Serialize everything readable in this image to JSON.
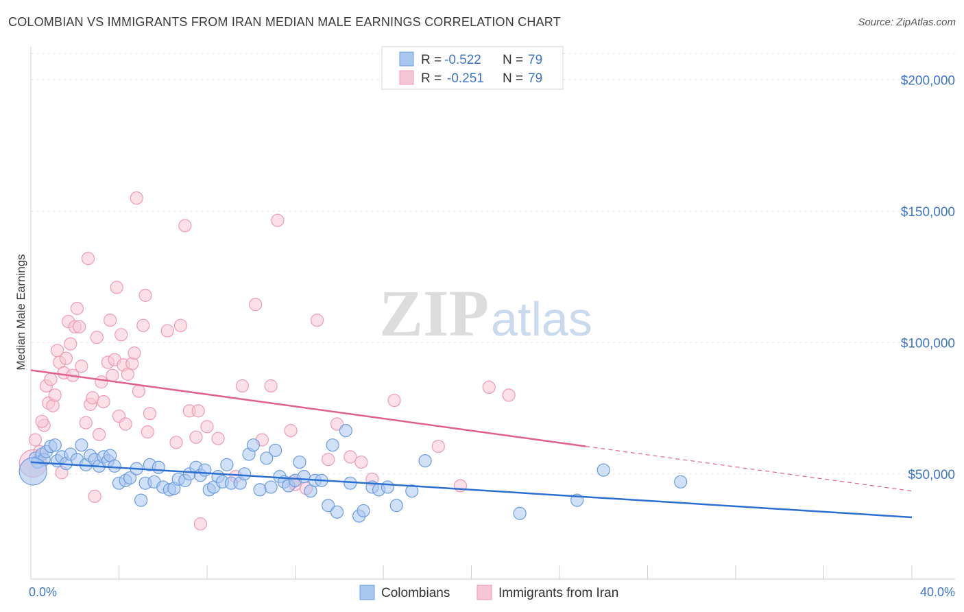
{
  "title": "COLOMBIAN VS IMMIGRANTS FROM IRAN MEDIAN MALE EARNINGS CORRELATION CHART",
  "source": "Source: ZipAtlas.com",
  "watermark": {
    "zip": "ZIP",
    "atlas": "atlas"
  },
  "chart_data": {
    "type": "scatter",
    "title": "COLOMBIAN VS IMMIGRANTS FROM IRAN MEDIAN MALE EARNINGS CORRELATION CHART",
    "xlabel": "",
    "ylabel": "Median Male Earnings",
    "xlim": [
      0,
      40
    ],
    "ylim": [
      10000,
      210000
    ],
    "x_tick_labels": [
      "0.0%",
      "40.0%"
    ],
    "y_ticks": [
      50000,
      100000,
      150000,
      200000
    ],
    "y_tick_labels": [
      "$50,000",
      "$100,000",
      "$150,000",
      "$200,000"
    ],
    "grid": true,
    "legend_position": "top-center",
    "legend": [
      {
        "r_label": "R =",
        "r_value": "-0.522",
        "n_label": "N =",
        "n_value": "79"
      },
      {
        "r_label": "R =",
        "r_value": "-0.251",
        "n_label": "N =",
        "n_value": "79"
      }
    ],
    "series": [
      {
        "name": "Colombians",
        "color": "#6a9be0",
        "fill": "#a9c6ef",
        "trend": {
          "x": [
            0,
            40
          ],
          "y": [
            54500,
            33500
          ],
          "color": "#2a6fd1"
        },
        "points": [
          [
            0.2,
            56000
          ],
          [
            0.3,
            54500
          ],
          [
            0.5,
            57500
          ],
          [
            0.6,
            55500
          ],
          [
            0.7,
            58500
          ],
          [
            0.9,
            60500
          ],
          [
            1.1,
            61000
          ],
          [
            1.2,
            55000
          ],
          [
            1.4,
            56500
          ],
          [
            1.6,
            54000
          ],
          [
            1.8,
            57500
          ],
          [
            2.1,
            55500
          ],
          [
            2.3,
            61000
          ],
          [
            2.5,
            53500
          ],
          [
            2.7,
            57000
          ],
          [
            2.9,
            55500
          ],
          [
            3.1,
            53000
          ],
          [
            3.3,
            56500
          ],
          [
            3.5,
            55000
          ],
          [
            3.6,
            57000
          ],
          [
            3.8,
            53000
          ],
          [
            4.0,
            46500
          ],
          [
            4.3,
            47500
          ],
          [
            4.5,
            48500
          ],
          [
            4.8,
            52000
          ],
          [
            5.0,
            40000
          ],
          [
            5.2,
            46500
          ],
          [
            5.4,
            53500
          ],
          [
            5.6,
            47000
          ],
          [
            5.8,
            52500
          ],
          [
            6.0,
            45000
          ],
          [
            6.3,
            44000
          ],
          [
            6.5,
            44500
          ],
          [
            6.7,
            48000
          ],
          [
            7.0,
            47500
          ],
          [
            7.2,
            50000
          ],
          [
            7.5,
            52500
          ],
          [
            7.7,
            49500
          ],
          [
            7.9,
            51500
          ],
          [
            8.1,
            44000
          ],
          [
            8.3,
            45000
          ],
          [
            8.5,
            49000
          ],
          [
            8.7,
            47000
          ],
          [
            8.9,
            53500
          ],
          [
            9.1,
            46500
          ],
          [
            9.5,
            46500
          ],
          [
            9.7,
            50000
          ],
          [
            9.9,
            57500
          ],
          [
            10.1,
            61000
          ],
          [
            10.4,
            44000
          ],
          [
            10.7,
            56000
          ],
          [
            10.9,
            45000
          ],
          [
            11.1,
            59000
          ],
          [
            11.3,
            49000
          ],
          [
            11.5,
            47000
          ],
          [
            11.7,
            45500
          ],
          [
            12.0,
            47500
          ],
          [
            12.2,
            54500
          ],
          [
            12.4,
            49000
          ],
          [
            12.7,
            43500
          ],
          [
            12.9,
            47500
          ],
          [
            13.2,
            47500
          ],
          [
            13.5,
            38000
          ],
          [
            13.7,
            61000
          ],
          [
            13.9,
            35500
          ],
          [
            14.3,
            66500
          ],
          [
            14.5,
            46500
          ],
          [
            14.9,
            34000
          ],
          [
            15.1,
            36000
          ],
          [
            15.5,
            45000
          ],
          [
            15.8,
            44000
          ],
          [
            16.2,
            45000
          ],
          [
            16.6,
            38000
          ],
          [
            17.3,
            43500
          ],
          [
            17.9,
            55000
          ],
          [
            22.2,
            35000
          ],
          [
            24.8,
            40000
          ],
          [
            26.0,
            51500
          ],
          [
            29.5,
            47000
          ]
        ],
        "big_point": [
          0.1,
          51000
        ]
      },
      {
        "name": "Immigrants from Iran",
        "color": "#ee9ab4",
        "fill": "#f7c6d5",
        "trend": {
          "x": [
            0,
            25.2,
            40
          ],
          "y": [
            89500,
            60500,
            43500
          ],
          "color": "#e0608a",
          "dashed_from": 25.2
        },
        "points": [
          [
            0.2,
            63000
          ],
          [
            0.4,
            58500
          ],
          [
            0.6,
            68500
          ],
          [
            0.5,
            70000
          ],
          [
            0.7,
            83500
          ],
          [
            0.8,
            77000
          ],
          [
            0.9,
            86000
          ],
          [
            1.0,
            76000
          ],
          [
            1.1,
            80000
          ],
          [
            1.2,
            97000
          ],
          [
            1.3,
            92500
          ],
          [
            1.4,
            50500
          ],
          [
            1.5,
            88500
          ],
          [
            1.6,
            94000
          ],
          [
            1.7,
            108000
          ],
          [
            1.8,
            99500
          ],
          [
            1.9,
            87500
          ],
          [
            2.0,
            106000
          ],
          [
            2.1,
            113000
          ],
          [
            2.2,
            106000
          ],
          [
            2.3,
            91000
          ],
          [
            2.5,
            69500
          ],
          [
            2.6,
            132000
          ],
          [
            2.7,
            76500
          ],
          [
            2.8,
            79000
          ],
          [
            2.9,
            41500
          ],
          [
            3.0,
            102000
          ],
          [
            3.1,
            65000
          ],
          [
            3.2,
            85000
          ],
          [
            3.3,
            77500
          ],
          [
            3.5,
            92500
          ],
          [
            3.6,
            108500
          ],
          [
            3.7,
            87500
          ],
          [
            3.8,
            93500
          ],
          [
            3.9,
            121000
          ],
          [
            4.0,
            72000
          ],
          [
            4.1,
            103000
          ],
          [
            4.2,
            91500
          ],
          [
            4.3,
            69000
          ],
          [
            4.4,
            88000
          ],
          [
            4.6,
            92000
          ],
          [
            4.7,
            96000
          ],
          [
            4.8,
            155000
          ],
          [
            4.9,
            81500
          ],
          [
            5.1,
            106500
          ],
          [
            5.2,
            118000
          ],
          [
            5.3,
            66000
          ],
          [
            5.4,
            73000
          ],
          [
            6.2,
            104500
          ],
          [
            6.6,
            62000
          ],
          [
            6.8,
            106500
          ],
          [
            7.0,
            144500
          ],
          [
            7.2,
            74000
          ],
          [
            7.5,
            64000
          ],
          [
            7.6,
            74000
          ],
          [
            7.7,
            31000
          ],
          [
            8.0,
            68000
          ],
          [
            8.5,
            63500
          ],
          [
            9.3,
            49000
          ],
          [
            9.6,
            83500
          ],
          [
            10.2,
            114500
          ],
          [
            10.5,
            63000
          ],
          [
            10.9,
            83500
          ],
          [
            11.2,
            146500
          ],
          [
            11.8,
            66500
          ],
          [
            11.9,
            47000
          ],
          [
            12.0,
            46000
          ],
          [
            12.5,
            44500
          ],
          [
            13.0,
            108500
          ],
          [
            13.5,
            55500
          ],
          [
            13.9,
            69000
          ],
          [
            14.5,
            56500
          ],
          [
            15.0,
            54500
          ],
          [
            15.5,
            48000
          ],
          [
            16.5,
            78000
          ],
          [
            18.5,
            60500
          ],
          [
            19.5,
            45500
          ],
          [
            20.8,
            83000
          ],
          [
            21.7,
            80000
          ]
        ],
        "big_point": [
          0.1,
          54000
        ]
      }
    ]
  }
}
